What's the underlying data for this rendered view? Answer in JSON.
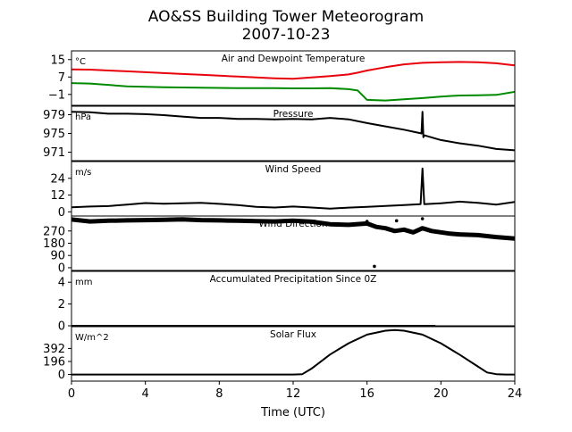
{
  "figure": {
    "title_line1": "AO&SS Building Tower Meteorogram",
    "title_line2": "2007-10-23",
    "xlabel": "Time (UTC)"
  },
  "chart_data": [
    {
      "type": "line",
      "title": "Air and Dewpoint Temperature",
      "unit": "°C",
      "ylim": [
        -6,
        19
      ],
      "yticks": [
        15,
        7,
        -1
      ],
      "ytick_labels": [
        "15",
        "7",
        "−1"
      ],
      "x": [
        0,
        1,
        2,
        3,
        4,
        5,
        6,
        7,
        8,
        9,
        10,
        11,
        12,
        13,
        14,
        15,
        15.5,
        16,
        17,
        18,
        19,
        20,
        21,
        22,
        23,
        24
      ],
      "series": [
        {
          "color": "#e8000b",
          "values": [
            10.5,
            10.4,
            10.0,
            9.6,
            9.2,
            8.8,
            8.4,
            8.0,
            7.6,
            7.2,
            6.8,
            6.4,
            6.2,
            6.8,
            7.4,
            8.2,
            9.0,
            10.0,
            11.5,
            12.8,
            13.5,
            13.8,
            13.9,
            13.8,
            13.3,
            12.3
          ]
        },
        {
          "color": "#008a00",
          "values": [
            4.2,
            4.0,
            3.4,
            2.7,
            2.5,
            2.3,
            2.2,
            2.1,
            2.0,
            1.9,
            1.9,
            1.9,
            1.8,
            1.8,
            1.9,
            1.4,
            0.8,
            -3.5,
            -3.8,
            -3.2,
            -2.7,
            -2.0,
            -1.5,
            -1.4,
            -1.2,
            0.2
          ]
        }
      ]
    },
    {
      "type": "line",
      "title": "Pressure",
      "unit": "hPa",
      "ylim": [
        969.2,
        980.8
      ],
      "yticks": [
        979,
        975,
        971
      ],
      "ytick_labels": [
        "979",
        "975",
        "971"
      ],
      "x": [
        0,
        1,
        2,
        3,
        4,
        5,
        6,
        7,
        8,
        9,
        10,
        11,
        12,
        13,
        14,
        15,
        16,
        17,
        18,
        18.95,
        19.0,
        19.05,
        19.1,
        20,
        21,
        22,
        23,
        24
      ],
      "series": [
        {
          "color": "#000000",
          "values": [
            979.6,
            979.5,
            979.2,
            979.2,
            979.1,
            978.9,
            978.6,
            978.3,
            978.3,
            978.1,
            978.1,
            978.0,
            978.1,
            978.0,
            978.3,
            978.0,
            977.2,
            976.5,
            975.8,
            975.0,
            979.6,
            974.2,
            974.6,
            973.6,
            972.9,
            972.4,
            971.7,
            971.4
          ]
        }
      ]
    },
    {
      "type": "line",
      "title": "Wind Speed",
      "unit": "m/s",
      "ylim": [
        -3,
        36
      ],
      "yticks": [
        24,
        12,
        0
      ],
      "ytick_labels": [
        "24",
        "12",
        "0"
      ],
      "x": [
        0,
        1,
        2,
        3,
        4,
        5,
        6,
        7,
        8,
        9,
        10,
        11,
        12,
        13,
        14,
        15,
        16,
        17,
        18,
        18.9,
        19.0,
        19.1,
        20,
        21,
        22,
        23,
        24
      ],
      "series": [
        {
          "color": "#000000",
          "values": [
            3.2,
            3.8,
            4.1,
            5.2,
            6.3,
            5.8,
            6.1,
            6.4,
            5.7,
            4.8,
            3.6,
            3.1,
            3.8,
            3.1,
            2.3,
            3.0,
            3.6,
            4.2,
            4.8,
            5.5,
            31.0,
            5.5,
            6.1,
            7.3,
            6.4,
            5.2,
            7.1
          ]
        }
      ]
    },
    {
      "type": "scatter",
      "title": "Wind Direction",
      "unit": "",
      "ylim": [
        -20,
        380
      ],
      "yticks": [
        270,
        180,
        90,
        0
      ],
      "ytick_labels": [
        "270",
        "180",
        "90",
        "0"
      ],
      "x": [
        0,
        1,
        2,
        3,
        4,
        5,
        6,
        7,
        8,
        9,
        10,
        11,
        12,
        13,
        14,
        15,
        16,
        16.5,
        17,
        17.5,
        18,
        18.5,
        19,
        19.5,
        20.5,
        21,
        22,
        23,
        24
      ],
      "series": [
        {
          "color": "#000000",
          "values": [
            355,
            340,
            345,
            348,
            350,
            352,
            355,
            350,
            348,
            345,
            342,
            340,
            345,
            338,
            320,
            315,
            325,
            300,
            290,
            270,
            280,
            260,
            290,
            270,
            250,
            245,
            240,
            225,
            215
          ]
        }
      ],
      "outliers": [
        [
          16.4,
          10
        ],
        [
          16.0,
          340
        ],
        [
          19.0,
          360
        ],
        [
          17.6,
          345
        ]
      ]
    },
    {
      "type": "line",
      "title": "Accumulated Precipitation Since 0Z",
      "unit": "mm",
      "ylim": [
        0,
        5
      ],
      "yticks": [
        4,
        2,
        0
      ],
      "ytick_labels": [
        "4",
        "2",
        "0"
      ],
      "x": [
        0,
        19.7
      ],
      "series": [
        {
          "color": "#000000",
          "values": [
            0,
            0
          ]
        }
      ]
    },
    {
      "type": "line",
      "title": "Solar Flux",
      "unit": "W/m^2",
      "ylim": [
        -100,
        720
      ],
      "yticks": [
        392,
        196,
        0
      ],
      "ytick_labels": [
        "392",
        "196",
        "0"
      ],
      "x": [
        0,
        6,
        12,
        12.5,
        13,
        14,
        15,
        16,
        17,
        17.5,
        18,
        19,
        20,
        21,
        22,
        22.5,
        23,
        23.5,
        24
      ],
      "series": [
        {
          "color": "#000000",
          "values": [
            0,
            0,
            0,
            5,
            90,
            300,
            470,
            600,
            660,
            670,
            660,
            600,
            470,
            300,
            120,
            30,
            5,
            0,
            0
          ]
        }
      ]
    }
  ],
  "xaxis": {
    "xlim": [
      0,
      24
    ],
    "ticks": [
      0,
      4,
      8,
      12,
      16,
      20,
      24
    ],
    "tick_labels": [
      "0",
      "4",
      "8",
      "12",
      "16",
      "20",
      "24"
    ]
  }
}
